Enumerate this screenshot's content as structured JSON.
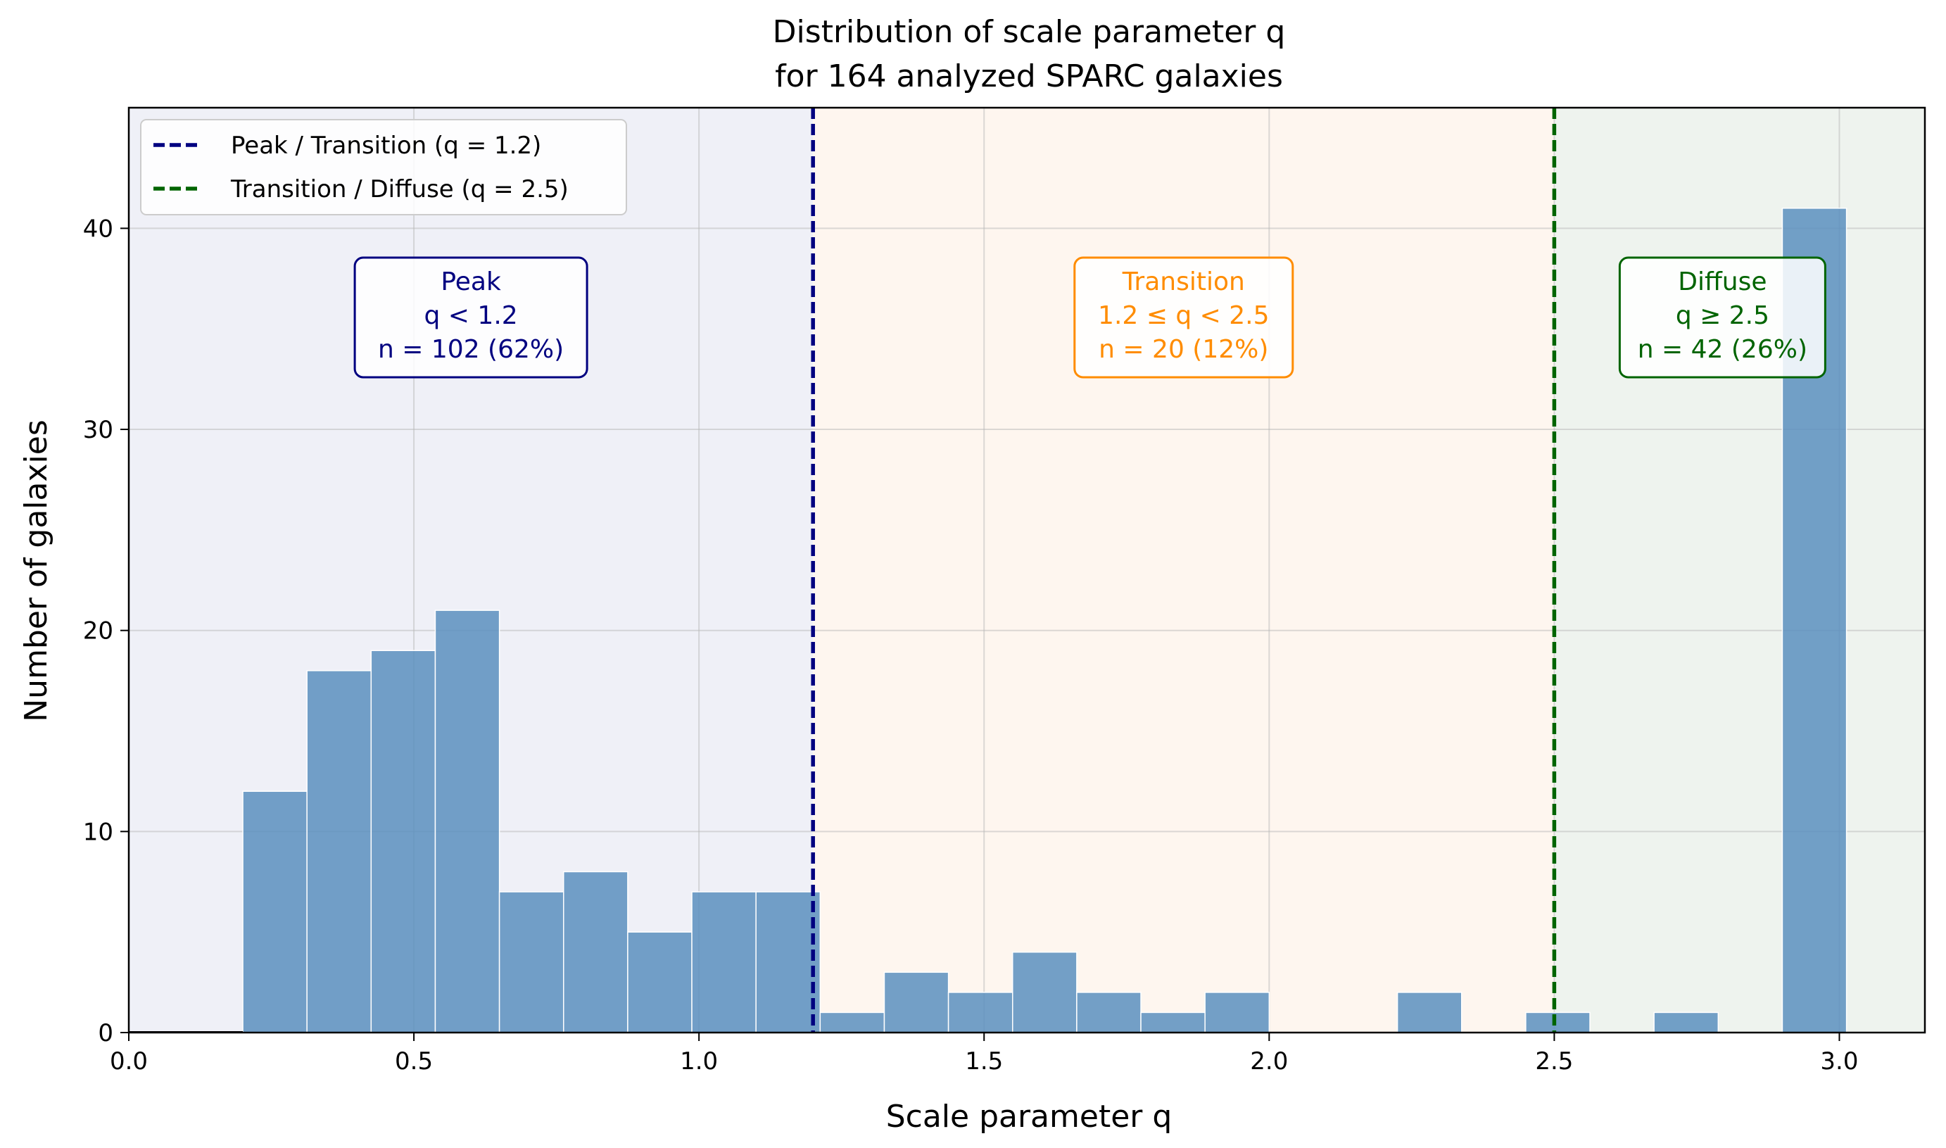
{
  "chart_data": {
    "type": "bar",
    "title": "Distribution of scale parameter q",
    "subtitle": "for 164 analyzed SPARC galaxies",
    "xlabel": "Scale parameter q",
    "ylabel": "Number of galaxies",
    "xlim": [
      0.0,
      3.15
    ],
    "ylim": [
      0,
      46
    ],
    "x_ticks": [
      "0.0",
      "0.5",
      "1.0",
      "1.5",
      "2.0",
      "2.5",
      "3.0"
    ],
    "y_ticks": [
      "0",
      "10",
      "20",
      "30",
      "40"
    ],
    "grid": true,
    "bar_color": "#5b8fbe",
    "bin_width": 0.1125,
    "bins": [
      {
        "x": 0.2,
        "count": 12
      },
      {
        "x": 0.3125,
        "count": 18
      },
      {
        "x": 0.425,
        "count": 19
      },
      {
        "x": 0.5375,
        "count": 21
      },
      {
        "x": 0.65,
        "count": 7
      },
      {
        "x": 0.7625,
        "count": 8
      },
      {
        "x": 0.875,
        "count": 5
      },
      {
        "x": 0.9875,
        "count": 7
      },
      {
        "x": 1.1,
        "count": 7
      },
      {
        "x": 1.2125,
        "count": 1
      },
      {
        "x": 1.325,
        "count": 3
      },
      {
        "x": 1.4375,
        "count": 2
      },
      {
        "x": 1.55,
        "count": 4
      },
      {
        "x": 1.6625,
        "count": 2
      },
      {
        "x": 1.775,
        "count": 1
      },
      {
        "x": 1.8875,
        "count": 2
      },
      {
        "x": 2.0,
        "count": 0
      },
      {
        "x": 2.1125,
        "count": 0
      },
      {
        "x": 2.225,
        "count": 2
      },
      {
        "x": 2.3375,
        "count": 0
      },
      {
        "x": 2.45,
        "count": 1
      },
      {
        "x": 2.5625,
        "count": 0
      },
      {
        "x": 2.675,
        "count": 1
      },
      {
        "x": 2.7875,
        "count": 0
      },
      {
        "x": 2.9,
        "count": 41
      }
    ],
    "regions": [
      {
        "from": 0.0,
        "to": 1.2,
        "color": "#eff0f7"
      },
      {
        "from": 1.2,
        "to": 2.5,
        "color": "#fef6ef"
      },
      {
        "from": 2.5,
        "to": 3.15,
        "color": "#eef3ee"
      }
    ],
    "lines": [
      {
        "x": 1.2,
        "color": "#000080",
        "label": "Peak / Transition (q = 1.2)"
      },
      {
        "x": 2.5,
        "color": "#006400",
        "label": "Transition / Diffuse (q = 2.5)"
      }
    ],
    "legend_position": "top-left",
    "annotations": [
      {
        "x": 0.6,
        "color": "#000080",
        "lines": [
          "Peak",
          "q < 1.2",
          "n = 102 (62%)"
        ]
      },
      {
        "x": 1.85,
        "color": "#ff8c00",
        "lines": [
          "Transition",
          "1.2 ≤ q < 2.5",
          "n = 20 (12%)"
        ]
      },
      {
        "x": 2.795,
        "color": "#006400",
        "lines": [
          "Diffuse",
          "q ≥ 2.5",
          "n = 42 (26%)"
        ]
      }
    ]
  }
}
